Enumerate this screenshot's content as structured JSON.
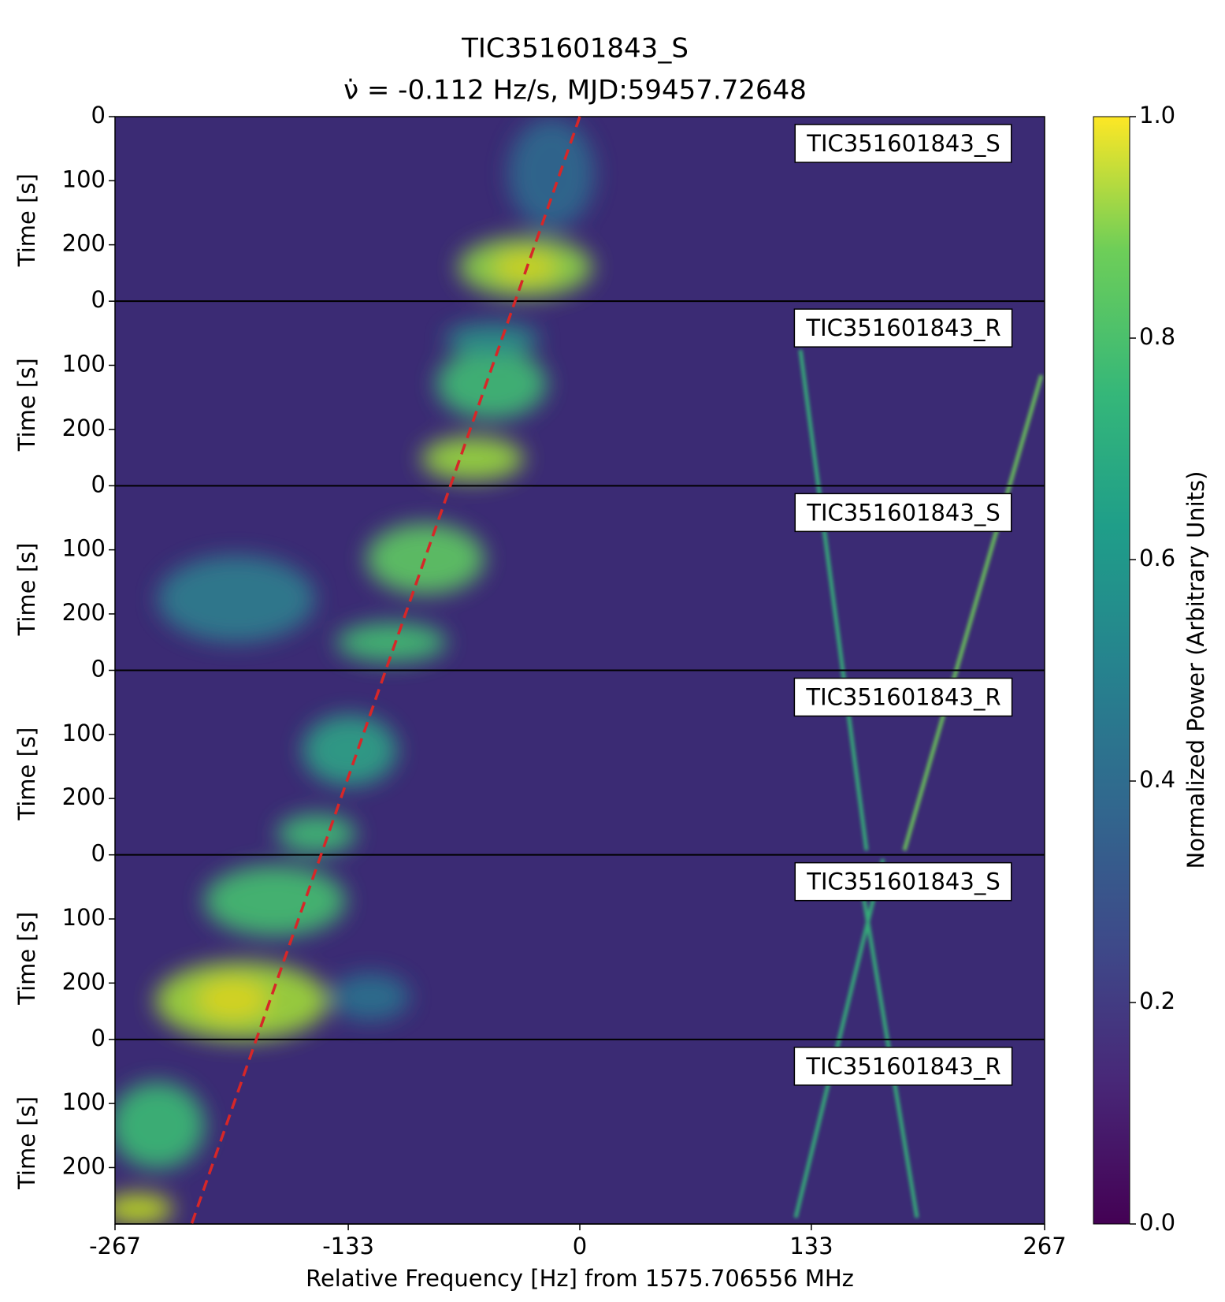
{
  "chart_data": {
    "type": "waterfall",
    "title": "TIC351601843_S",
    "subtitle": "ν̇ = -0.112 Hz/s, MJD:59457.72648",
    "xlabel": "Relative Frequency [Hz] from 1575.706556 MHz",
    "ylabel": "Time [s]",
    "xlim": [
      -267,
      267
    ],
    "xticks": [
      -267,
      -133,
      0,
      133,
      267
    ],
    "ylim": [
      0,
      288
    ],
    "yticks": [
      0,
      100,
      200
    ],
    "panels": [
      {
        "label": "TIC351601843_S"
      },
      {
        "label": "TIC351601843_R"
      },
      {
        "label": "TIC351601843_S"
      },
      {
        "label": "TIC351601843_R"
      },
      {
        "label": "TIC351601843_S"
      },
      {
        "label": "TIC351601843_R"
      }
    ],
    "drift_line": {
      "color": "#d62728",
      "x_start": 0,
      "x_end": -223
    },
    "colorbar": {
      "label": "Normalized Power (Arbitrary Units)",
      "lim": [
        0,
        1
      ],
      "ticks": [
        {
          "value": 0,
          "label": "0.0"
        },
        0.2,
        0.4,
        0.6,
        0.8,
        {
          "value": 1,
          "label": "1.0"
        }
      ]
    }
  }
}
